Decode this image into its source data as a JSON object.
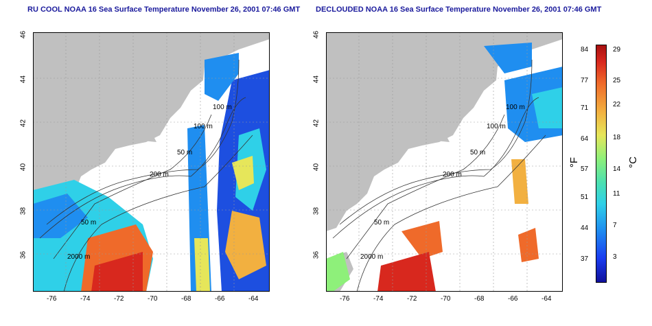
{
  "left_panel": {
    "title": "RU COOL NOAA 16 Sea Surface Temperature November 26, 2001 07:46 GMT",
    "contour_labels": [
      "100 m",
      "100 m",
      "50 m",
      "200 m",
      "50 m",
      "2000 m"
    ]
  },
  "right_panel": {
    "title": "DECLOUDED NOAA 16 Sea Surface Temperature November 26, 2001 07:46 GMT",
    "contour_labels": [
      "100 m",
      "100 m",
      "50 m",
      "200 m",
      "50 m",
      "2000 m"
    ]
  },
  "axes": {
    "x_ticks": [
      "-76",
      "-74",
      "-72",
      "-70",
      "-68",
      "-66",
      "-64"
    ],
    "y_ticks": [
      "46",
      "44",
      "42",
      "40",
      "38",
      "36"
    ]
  },
  "colorbar": {
    "fahrenheit_label": "°F",
    "celsius_label": "°C",
    "fahrenheit_ticks": [
      "84",
      "77",
      "71",
      "64",
      "57",
      "51",
      "44",
      "37"
    ],
    "celsius_ticks": [
      "29",
      "25",
      "22",
      "18",
      "14",
      "11",
      "7",
      "3"
    ]
  },
  "colors": {
    "title": "#1a1a9c",
    "land": "#c0c0c0",
    "water_no_data": "#ffffff"
  }
}
